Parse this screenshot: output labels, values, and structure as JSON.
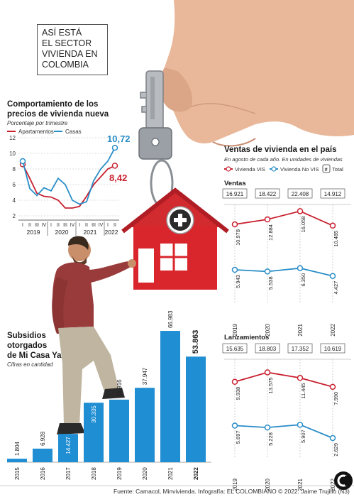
{
  "header": {
    "lines": [
      "Así está",
      "el sector",
      "vivienda en",
      "Colombia"
    ]
  },
  "colors": {
    "red": "#c8202f",
    "blue": "#2a8ec8",
    "bar_blue": "#1f8ed3",
    "dark_blue": "#1b3b5e"
  },
  "icons": [
    "house-plus-icon",
    "key-icon",
    "man-climbing-figure",
    "hand-figure",
    "el-colombiano-logo-icon"
  ],
  "price_chart": {
    "title_line1": "Comportamiento de los",
    "title_line2": "precios de vivienda nueva",
    "subtitle": "Porcentaje por trimestre",
    "legend_apartamentos": "Apartamentos",
    "legend_casas": "Casas",
    "label_casas_last": "10,72",
    "label_apart_last": "8,42",
    "quarter_labels": [
      "I",
      "II",
      "III",
      "IV",
      "I",
      "II",
      "III",
      "IV",
      "I",
      "II",
      "III",
      "IV",
      "I",
      "II"
    ],
    "year_labels": [
      "2019",
      "2020",
      "2021",
      "2022"
    ]
  },
  "ventas": {
    "title": "Ventas de vivienda en el país",
    "subtitle": "En agosto de cada año. En unidades de viviendas",
    "legend_vis": "Vivienda VIS",
    "legend_novis": "Vivienda No VIS",
    "legend_total_symbol": "#",
    "legend_total": "Total",
    "panel1_title": "Ventas",
    "panel1_totals": [
      "16.921",
      "18.422",
      "22.408",
      "14.912"
    ],
    "panel1_vis_labels": [
      "10.978",
      "12.884",
      "16.058",
      "10.485"
    ],
    "panel1_novis_labels": [
      "5.943",
      "5.538",
      "6.350",
      "4.427"
    ],
    "panel2_title": "Lanzamientos",
    "panel2_totals": [
      "15.635",
      "18.803",
      "17.352",
      "10.619"
    ],
    "panel2_vis_labels": [
      "9.938",
      "13.575",
      "11.445",
      "7.990"
    ],
    "panel2_novis_labels": [
      "5.697",
      "5.228",
      "5.907",
      "2.629"
    ],
    "years": [
      "2019",
      "2020",
      "2021",
      "2022"
    ]
  },
  "subsidios": {
    "title_line1": "Subsidios",
    "title_line2": "otorgados",
    "title_line3": "de Mi Casa Ya",
    "subtitle": "Cifras en cantidad"
  },
  "footer": {
    "source": "Fuente: Camacol, Minvivienda. Infografía: EL COLOMBIANO © 2022. Jaime Trujillo (N3)"
  },
  "chart_data": [
    {
      "type": "line",
      "title": "Comportamiento de los precios de vivienda nueva",
      "ylabel": "Porcentaje por trimestre",
      "ylim": [
        2,
        12
      ],
      "yticks": [
        2,
        4,
        6,
        8,
        10,
        12
      ],
      "grid": true,
      "legend": "top-left",
      "x": [
        "2019-I",
        "2019-II",
        "2019-III",
        "2019-IV",
        "2020-I",
        "2020-II",
        "2020-III",
        "2020-IV",
        "2021-I",
        "2021-II",
        "2021-III",
        "2021-IV",
        "2022-I",
        "2022-II"
      ],
      "series": [
        {
          "name": "Apartamentos",
          "values": [
            8.6,
            6.8,
            4.9,
            4.5,
            4.4,
            4.0,
            3.0,
            3.0,
            3.2,
            4.5,
            6.0,
            7.0,
            8.0,
            8.42
          ]
        },
        {
          "name": "Casas",
          "values": [
            9.0,
            5.5,
            4.6,
            5.6,
            5.2,
            6.8,
            6.0,
            4.0,
            3.5,
            3.8,
            6.5,
            8.0,
            9.0,
            10.72
          ]
        }
      ]
    },
    {
      "type": "line",
      "title": "Ventas",
      "categories": [
        "2019",
        "2020",
        "2021",
        "2022"
      ],
      "series": [
        {
          "name": "Vivienda VIS",
          "values": [
            10978,
            12884,
            16058,
            10485
          ]
        },
        {
          "name": "Vivienda No VIS",
          "values": [
            5943,
            5538,
            6350,
            4427
          ]
        },
        {
          "name": "Total",
          "values": [
            16921,
            18422,
            22408,
            14912
          ]
        }
      ]
    },
    {
      "type": "line",
      "title": "Lanzamientos",
      "categories": [
        "2019",
        "2020",
        "2021",
        "2022"
      ],
      "series": [
        {
          "name": "Vivienda VIS",
          "values": [
            9938,
            13575,
            11445,
            7990
          ]
        },
        {
          "name": "Vivienda No VIS",
          "values": [
            5697,
            5228,
            5907,
            2629
          ]
        },
        {
          "name": "Total",
          "values": [
            15635,
            18803,
            17352,
            10619
          ]
        }
      ]
    },
    {
      "type": "bar",
      "title": "Subsidios otorgados de Mi Casa Ya",
      "ylabel": "Cifras en cantidad",
      "categories": [
        "2015",
        "2016",
        "2017",
        "2018",
        "2019",
        "2020",
        "2021",
        "2022"
      ],
      "values": [
        1804,
        6928,
        14427,
        30335,
        31916,
        37947,
        66983,
        53863
      ],
      "value_labels": [
        "1.804",
        "6.928",
        "14.427",
        "30.335",
        "31.916",
        "37.947",
        "66.983",
        "53.863"
      ]
    }
  ]
}
